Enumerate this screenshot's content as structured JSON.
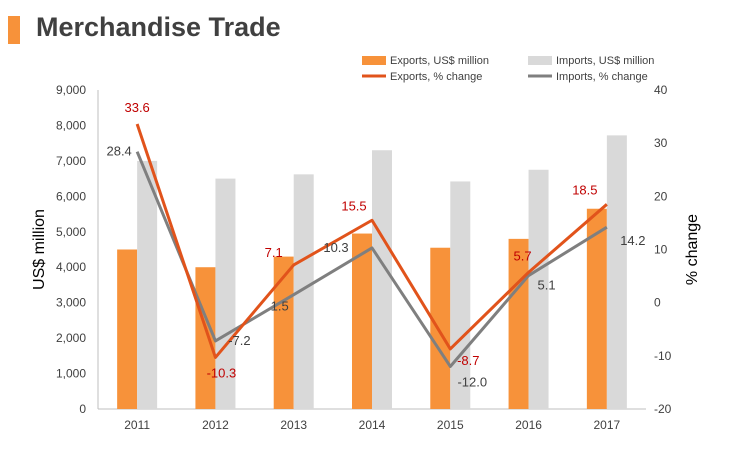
{
  "header": {
    "title": "Merchandise Trade"
  },
  "colors": {
    "accent": "#F7923A",
    "exports_bar": "#F7923A",
    "imports_bar": "#D9D9D9",
    "exports_line": "#E1531B",
    "imports_line": "#7F7F7F",
    "exports_label": "#C00000",
    "imports_label": "#404040"
  },
  "chart_data": {
    "type": "bar",
    "categories": [
      "2011",
      "2012",
      "2013",
      "2014",
      "2015",
      "2016",
      "2017"
    ],
    "ylabel": "US$ million",
    "y2label": "% change",
    "ylim": [
      0,
      9000
    ],
    "yticks": [
      "0",
      "1,000",
      "2,000",
      "3,000",
      "4,000",
      "5,000",
      "6,000",
      "7,000",
      "8,000",
      "9,000"
    ],
    "y2lim": [
      -20,
      40
    ],
    "y2ticks": [
      "-20",
      "-10",
      "0",
      "10",
      "20",
      "30",
      "40"
    ],
    "legend_position": "top-right",
    "series": [
      {
        "name": "Exports, US$ million",
        "kind": "bar",
        "axis": "left",
        "values": [
          4500,
          4000,
          4300,
          4950,
          4550,
          4800,
          5650
        ]
      },
      {
        "name": "Imports, US$ million",
        "kind": "bar",
        "axis": "left",
        "values": [
          7000,
          6500,
          6620,
          7300,
          6420,
          6750,
          7720
        ]
      },
      {
        "name": "Exports, % change",
        "kind": "line",
        "axis": "right",
        "values": [
          33.6,
          -10.3,
          7.1,
          15.5,
          -8.7,
          5.7,
          18.5
        ],
        "labels": [
          "33.6",
          "-10.3",
          "7.1",
          "15.5",
          "-8.7",
          "5.7",
          "18.5"
        ]
      },
      {
        "name": "Imports, % change",
        "kind": "line",
        "axis": "right",
        "values": [
          28.4,
          -7.2,
          1.5,
          10.3,
          -12.0,
          5.1,
          14.2
        ],
        "labels": [
          "28.4",
          "-7.2",
          "1.5",
          "10.3",
          "-12.0",
          "5.1",
          "14.2"
        ]
      }
    ]
  }
}
